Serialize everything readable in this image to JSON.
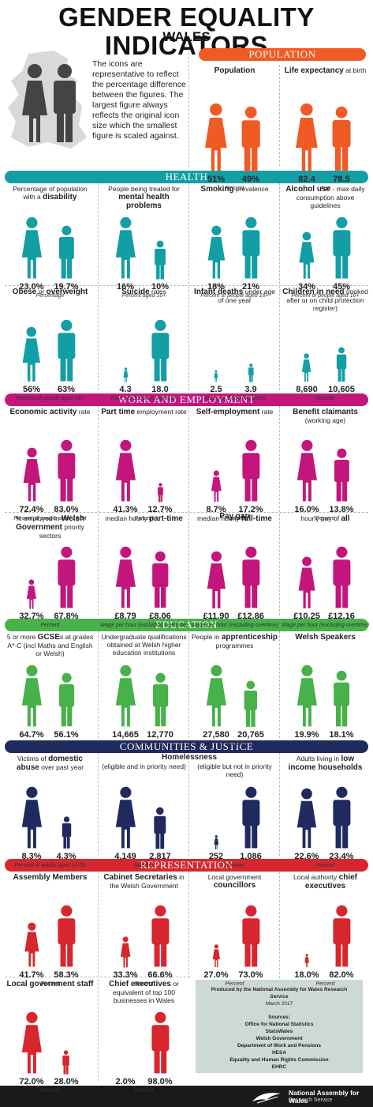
{
  "header": {
    "title": "GENDER EQUALITY INDICATORS",
    "subtitle": "WALES"
  },
  "intro": "The icons are representative to reflect the percentage difference between the figures. The largest figure always reflects the original icon size which the smallest figure is scaled against.",
  "colors": {
    "population": "#f05a24",
    "health": "#139ea5",
    "work": "#c2167d",
    "education": "#47b14a",
    "communities": "#1f2a5e",
    "representation": "#d7262e",
    "intro_figures": "#444444",
    "map": "#d9d9d9"
  },
  "sections": {
    "population": "POPULATION",
    "health": "HEALTH",
    "work": "WORK AND EMPLOYMENT",
    "education": "EDUCATION",
    "communities": "COMMUNITIES & JUSTICE",
    "representation": "REPRESENTATION"
  },
  "panels": [
    {
      "id": "pop1",
      "label_html": "<b>Population</b>",
      "f": "51%",
      "m": "49%",
      "unit": "Percent",
      "fs": 1.0,
      "ms": 0.96
    },
    {
      "id": "pop2",
      "label_html": "<b>Life expectancy</b> at birth",
      "f": "82.4",
      "m": "78.5",
      "unit": "Age",
      "fs": 1.0,
      "ms": 0.95
    },
    {
      "id": "h1",
      "label_html": "Percentage of population with a <b>disability</b>",
      "f": "23.0%",
      "m": "19.7%",
      "unit": "Percentage",
      "fs": 1.0,
      "ms": 0.86
    },
    {
      "id": "h2",
      "label_html": "People being treated for <b>mental health problems</b>",
      "f": "16%",
      "m": "10%",
      "unit": "Percent aged 16+",
      "fs": 1.0,
      "ms": 0.63
    },
    {
      "id": "h3",
      "label_html": "<b>Smoking</b> prevalence",
      "f": "18%",
      "m": "21%",
      "unit": "Percent of people aged 16+",
      "fs": 0.86,
      "ms": 1.0
    },
    {
      "id": "h4",
      "label_html": "<b>Alcohol use</b> - max daily consumption above guidelines",
      "f": "34%",
      "m": "45%",
      "unit": "Percent of people aged 16+",
      "fs": 0.76,
      "ms": 1.0
    },
    {
      "id": "h5",
      "label_html": "<b>Obese</b> or <b>overweight</b>",
      "f": "56%",
      "m": "63%",
      "unit": "Percent of people aged 16+",
      "fs": 0.89,
      "ms": 1.0
    },
    {
      "id": "h6",
      "label_html": "<b>Suicide</b> rates",
      "f": "4.3",
      "m": "18.0",
      "unit": "Rate per 100,000. Age 15+",
      "fs": 0.24,
      "ms": 1.0
    },
    {
      "id": "h7",
      "label_html": "<b>Infant deaths</b> under age of one year",
      "f": "2.5",
      "m": "3.9",
      "unit": "Rate per 1,000 live births",
      "fs": 0.2,
      "ms": 0.3
    },
    {
      "id": "h8",
      "label_html": "<b>Children in need</b> (looked after or on child protection register)",
      "f": "8,690",
      "m": "10,605",
      "unit": "Number",
      "fs": 0.46,
      "ms": 0.56
    },
    {
      "id": "w1",
      "label_html": "<b>Economic activity</b> rate",
      "f": "72.4%",
      "m": "83.0%",
      "unit": "Percent of people aged 16-64",
      "fs": 0.87,
      "ms": 1.0
    },
    {
      "id": "w2",
      "label_html": "<b>Part time</b> employment rate",
      "f": "41.3%",
      "m": "12.7%",
      "unit": "Percent",
      "fs": 1.0,
      "ms": 0.31
    },
    {
      "id": "w3",
      "label_html": "<b>Self-employment</b> rate",
      "f": "8.7%",
      "m": "17.2%",
      "unit": "Percent",
      "fs": 0.51,
      "ms": 1.0
    },
    {
      "id": "w4",
      "label_html": "<b>Benefit claimants</b> (working age)",
      "f": "16.0%",
      "m": "13.8%",
      "unit": "Percent",
      "fs": 1.0,
      "ms": 0.86
    },
    {
      "id": "w5",
      "label_html": "% employed in <b>Welsh Government</b> priority sectors",
      "f": "32.7%",
      "m": "67.8%",
      "unit": "Percent",
      "fs": 0.48,
      "ms": 1.0
    },
    {
      "id": "w6",
      "label_html": "median hourly <b>part-time</b>",
      "f": "£8.79",
      "m": "£8.06",
      "unit": "Wage per hour (excluding overtime)",
      "fs": 1.0,
      "ms": 0.92
    },
    {
      "id": "w7",
      "label_html": "median hourly <b>full-time</b>",
      "f": "£11.90",
      "m": "£12.86",
      "unit": "Wage per hour (excluding overtime)",
      "fs": 0.93,
      "ms": 1.0
    },
    {
      "id": "w8",
      "label_html": "hourly pay of <b>all</b>",
      "f": "£10.25",
      "m": "£12.16",
      "unit": "Wage per hour (excluding overtime)",
      "fs": 0.84,
      "ms": 1.0
    },
    {
      "id": "e1",
      "label_html": "5 or more <b>GCSE</b>s at grades A*-C (incl Maths and English or Welsh)",
      "f": "64.7%",
      "m": "56.1%",
      "unit": "Percent",
      "fs": 1.0,
      "ms": 0.87
    },
    {
      "id": "e2",
      "label_html": "Undergraduate qualifications obtained at Welsh higher education institutions",
      "f": "14,665",
      "m": "12,770",
      "unit": "Number",
      "fs": 1.0,
      "ms": 0.87
    },
    {
      "id": "e3",
      "label_html": "People in <b>apprenticeship</b> programmes",
      "f": "27,580",
      "m": "20,765",
      "unit": "Number",
      "fs": 1.0,
      "ms": 0.75
    },
    {
      "id": "e4",
      "label_html": "<b>Welsh Speakers</b>",
      "f": "19.9%",
      "m": "18.1%",
      "unit": "Percent",
      "fs": 1.0,
      "ms": 0.91
    },
    {
      "id": "c1",
      "label_html": "Victims of <b>domestic abuse</b> over past year",
      "f": "8.3%",
      "m": "4.3%",
      "unit": "Percent of adults aged 16-59",
      "fs": 1.0,
      "ms": 0.52
    },
    {
      "id": "c2",
      "label_html": "(eligible and in priority need)",
      "f": "4,149",
      "m": "2,817",
      "unit": "Number",
      "fs": 1.0,
      "ms": 0.68
    },
    {
      "id": "c3",
      "label_html": "(eligible but not in priority need)",
      "f": "252",
      "m": "1,086",
      "unit": "Number",
      "fs": 0.23,
      "ms": 1.0
    },
    {
      "id": "c4",
      "label_html": "Adults living in <b>low income households</b>",
      "f": "22.6%",
      "m": "23.4%",
      "unit": "Percent",
      "fs": 0.97,
      "ms": 1.0
    },
    {
      "id": "r1",
      "label_html": "<b>Assembly Members</b>",
      "f": "41.7%",
      "m": "58.3%",
      "unit": "Percent",
      "fs": 0.72,
      "ms": 1.0
    },
    {
      "id": "r2",
      "label_html": "<b>Cabinet Secretaries</b> in the Welsh Government",
      "f": "33.3%",
      "m": "66.6%",
      "unit": "Percent",
      "fs": 0.5,
      "ms": 1.0
    },
    {
      "id": "r3",
      "label_html": "Local government <b>councillors</b>",
      "f": "27.0%",
      "m": "73.0%",
      "unit": "Percent",
      "fs": 0.37,
      "ms": 1.0
    },
    {
      "id": "r4",
      "label_html": "Local authority <b>chief executives</b>",
      "f": "18.0%",
      "m": "82.0%",
      "unit": "Percent",
      "fs": 0.22,
      "ms": 1.0
    },
    {
      "id": "r5",
      "label_html": "<b>Local government staff</b>",
      "f": "72.0%",
      "m": "28.0%",
      "unit": "Percent",
      "fs": 1.0,
      "ms": 0.39
    },
    {
      "id": "r6",
      "label_html": "<b>Chief executives</b> or equivalent of top 100 businesses in Wales",
      "f": "2.0%",
      "m": "98.0%",
      "unit": "Percent",
      "fs": 0.0,
      "ms": 1.0
    }
  ],
  "pay_gap": "Pay gap",
  "homelessness": "Homelessness",
  "sources": {
    "produced": "Produced by the National Assembly for Wales Research Service",
    "date": "March 2017",
    "heading": "Sources:",
    "list": [
      "Office for National Statistics",
      "StatsWales",
      "Welsh Government",
      "Department of Work and Pensions",
      "HESA",
      "Equality and Human Rights Commission",
      "EHRC"
    ]
  },
  "footer": {
    "org": "National Assembly for Wales",
    "dept": "Research Service"
  }
}
